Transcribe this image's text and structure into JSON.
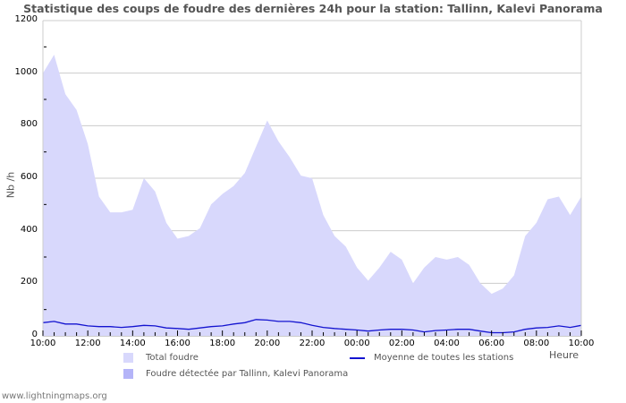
{
  "title": "Statistique des coups de foudre des dernières 24h pour la station: Tallinn, Kalevi Panorama",
  "footer": "www.lightningmaps.org",
  "colors": {
    "total_fill": "#d8d8fc",
    "detected_fill": "#b4b4f8",
    "average_line": "#1414d0",
    "grid": "#cccccc",
    "axis": "#cccccc"
  },
  "legend": {
    "total": "Total foudre",
    "detected": "Foudre détectée par Tallinn, Kalevi Panorama",
    "average": "Moyenne de toutes les stations"
  },
  "axes": {
    "ylabel": "Nb /h",
    "xlabel": "Heure",
    "yticks": [
      "0",
      "200",
      "400",
      "600",
      "800",
      "1000",
      "1200"
    ],
    "xticks": [
      "10:00",
      "12:00",
      "14:00",
      "16:00",
      "18:00",
      "20:00",
      "22:00",
      "00:00",
      "02:00",
      "04:00",
      "06:00",
      "08:00",
      "10:00"
    ]
  },
  "chart_data": {
    "type": "area",
    "title": "Statistique des coups de foudre des dernières 24h pour la station: Tallinn, Kalevi Panorama",
    "xlabel": "Heure",
    "ylabel": "Nb /h",
    "ylim": [
      0,
      1200
    ],
    "grid": true,
    "legend_position": "bottom",
    "x": [
      "10:00",
      "10:30",
      "11:00",
      "11:30",
      "12:00",
      "12:30",
      "13:00",
      "13:30",
      "14:00",
      "14:30",
      "15:00",
      "15:30",
      "16:00",
      "16:30",
      "17:00",
      "17:30",
      "18:00",
      "18:30",
      "19:00",
      "19:30",
      "20:00",
      "20:30",
      "21:00",
      "21:30",
      "22:00",
      "22:30",
      "23:00",
      "23:30",
      "00:00",
      "00:30",
      "01:00",
      "01:30",
      "02:00",
      "02:30",
      "03:00",
      "03:30",
      "04:00",
      "04:30",
      "05:00",
      "05:30",
      "06:00",
      "06:30",
      "07:00",
      "07:30",
      "08:00",
      "08:30",
      "09:00",
      "09:30",
      "10:00"
    ],
    "series": [
      {
        "name": "Total foudre",
        "type": "area",
        "values": [
          1000,
          1070,
          920,
          860,
          730,
          530,
          470,
          470,
          480,
          600,
          550,
          430,
          370,
          380,
          410,
          500,
          540,
          570,
          620,
          720,
          820,
          740,
          680,
          610,
          600,
          460,
          380,
          340,
          260,
          210,
          260,
          320,
          290,
          200,
          260,
          300,
          290,
          300,
          270,
          200,
          160,
          180,
          230,
          380,
          430,
          520,
          530,
          460,
          530
        ]
      },
      {
        "name": "Foudre détectée par Tallinn, Kalevi Panorama",
        "type": "area",
        "values": [
          0,
          0,
          0,
          0,
          0,
          0,
          0,
          0,
          0,
          0,
          0,
          0,
          0,
          0,
          0,
          0,
          0,
          0,
          0,
          0,
          0,
          0,
          0,
          0,
          0,
          0,
          0,
          0,
          0,
          0,
          0,
          0,
          0,
          0,
          0,
          0,
          0,
          0,
          0,
          0,
          0,
          0,
          0,
          0,
          0,
          0,
          0,
          0,
          0
        ]
      },
      {
        "name": "Moyenne de toutes les stations",
        "type": "line",
        "values": [
          50,
          55,
          45,
          45,
          38,
          35,
          35,
          32,
          35,
          40,
          38,
          30,
          28,
          25,
          30,
          35,
          38,
          45,
          50,
          62,
          60,
          55,
          55,
          50,
          40,
          32,
          28,
          25,
          22,
          18,
          22,
          25,
          25,
          22,
          15,
          20,
          22,
          25,
          25,
          18,
          12,
          12,
          15,
          25,
          30,
          32,
          38,
          32,
          40
        ]
      }
    ]
  }
}
